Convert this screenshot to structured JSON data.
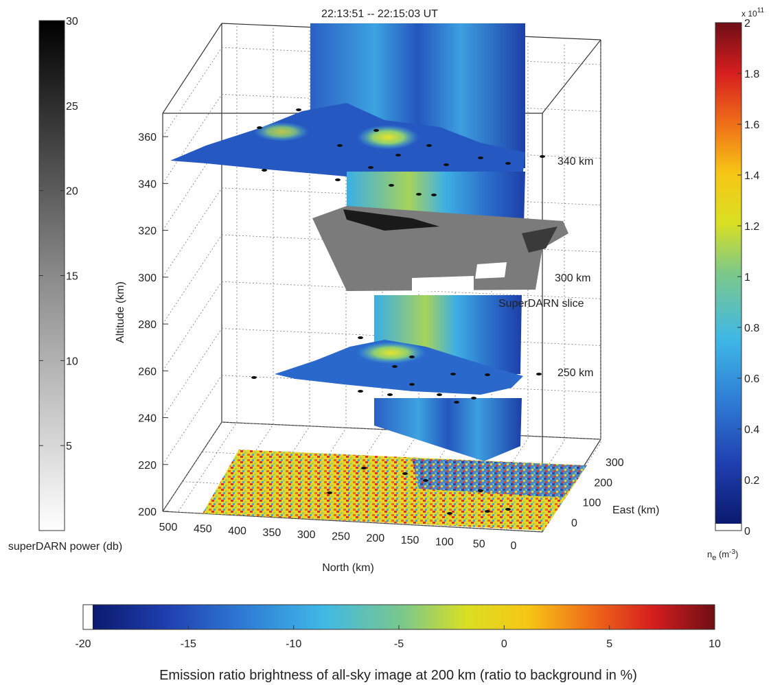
{
  "chart_data": {
    "type": "3d-slices",
    "title": "22:13:51 -- 22:15:03 UT",
    "axes": {
      "altitude": {
        "label": "Altitude (km)",
        "range": [
          200,
          370
        ],
        "ticks": [
          "200",
          "220",
          "240",
          "260",
          "280",
          "300",
          "320",
          "340",
          "360"
        ]
      },
      "north": {
        "label": "North (km)",
        "range": [
          0,
          500
        ],
        "ticks": [
          "500",
          "450",
          "400",
          "350",
          "300",
          "250",
          "200",
          "150",
          "100",
          "50",
          "0"
        ]
      },
      "east": {
        "label": "East (km)",
        "range": [
          0,
          300
        ],
        "ticks": [
          "0",
          "100",
          "200",
          "300"
        ]
      },
      "grid": true
    },
    "slices": [
      {
        "label": "340 km",
        "altitude": 340,
        "variable": "ne"
      },
      {
        "label": "300 km",
        "altitude": 300,
        "variable": "superDARN power",
        "note": "SuperDARN slice"
      },
      {
        "label": "250 km",
        "altitude": 250,
        "variable": "ne"
      },
      {
        "label": "",
        "altitude": 200,
        "variable": "emission ratio"
      }
    ],
    "colorbars": {
      "superdarn": {
        "label": "superDARN power (db)",
        "range": [
          0,
          30
        ],
        "ticks": [
          "5",
          "10",
          "15",
          "20",
          "25",
          "30"
        ],
        "colormap": "gray-reversed"
      },
      "ne": {
        "label": "n",
        "label_sub": "e",
        "label_unit": " (m",
        "label_sup": "-3",
        "label_close": ")",
        "range": [
          0,
          2
        ],
        "ticks": [
          "0",
          "0.2",
          "0.4",
          "0.6",
          "0.8",
          "1",
          "1.2",
          "1.4",
          "1.6",
          "1.8",
          "2"
        ],
        "multiplier_prefix": "x 10",
        "multiplier_exponent": "11",
        "colormap": "jet"
      },
      "emission": {
        "label": "Emission ratio brightness of all-sky image at 200 km (ratio to background in %)",
        "range": [
          -20,
          10
        ],
        "ticks": [
          "-20",
          "-15",
          "-10",
          "-5",
          "0",
          "5",
          "10"
        ],
        "colormap": "jet"
      }
    }
  }
}
